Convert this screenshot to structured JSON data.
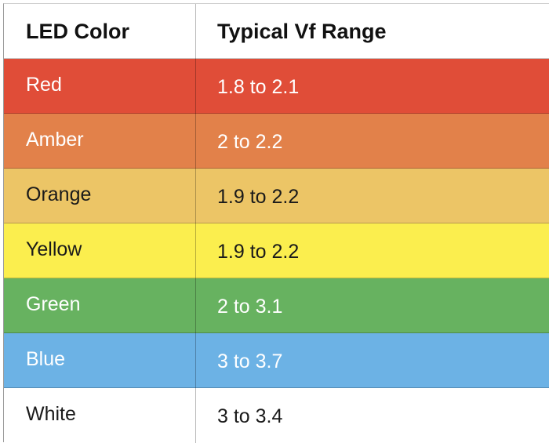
{
  "table": {
    "headers": [
      "LED Color",
      "Typical Vf Range"
    ],
    "rows": [
      {
        "color": "Red",
        "range": "1.8 to 2.1",
        "bg": "#e04d38",
        "text": "#ffffff"
      },
      {
        "color": "Amber",
        "range": "2 to 2.2",
        "bg": "#e2814a",
        "text": "#ffffff"
      },
      {
        "color": "Orange",
        "range": "1.9 to 2.2",
        "bg": "#ecc566",
        "text": "#1a1a1a"
      },
      {
        "color": "Yellow",
        "range": "1.9 to 2.2",
        "bg": "#fbee4e",
        "text": "#1a1a1a"
      },
      {
        "color": "Green",
        "range": "2 to 3.1",
        "bg": "#67b260",
        "text": "#ffffff"
      },
      {
        "color": "Blue",
        "range": "3 to 3.7",
        "bg": "#6cb2e5",
        "text": "#ffffff"
      },
      {
        "color": "White",
        "range": "3 to 3.4",
        "bg": "#ffffff",
        "text": "#1a1a1a"
      }
    ]
  }
}
